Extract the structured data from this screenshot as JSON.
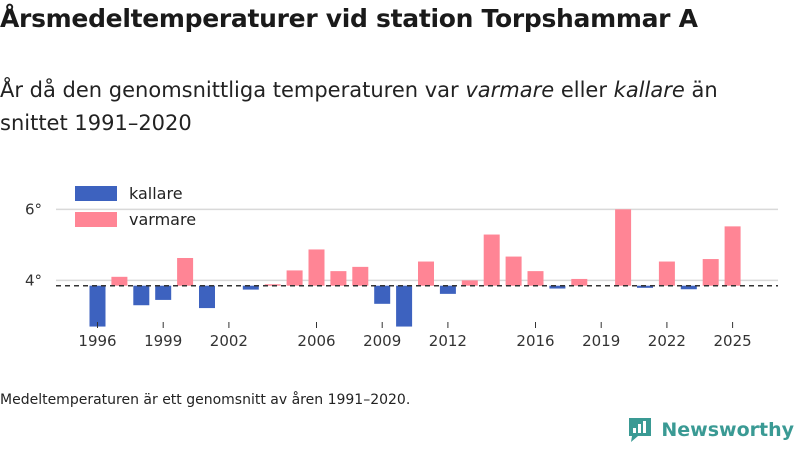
{
  "chart_data": {
    "type": "bar",
    "title": "Årsmedeltemperaturer vid station Torpshammar A",
    "subtitle_before_warm": "År då den genomsnittliga temperaturen var ",
    "subtitle_warm": "varmare",
    "subtitle_middle": " eller ",
    "subtitle_cold": "kallare",
    "subtitle_after": " än snittet 1991–2020",
    "baseline": 3.85,
    "ylim": [
      2.8,
      6.6
    ],
    "yticks": [
      {
        "value": 4,
        "label": "4°"
      },
      {
        "value": 6,
        "label": "6°"
      }
    ],
    "xticks": [
      {
        "year": 1996,
        "label": "1996"
      },
      {
        "year": 1999,
        "label": "1999"
      },
      {
        "year": 2002,
        "label": "2002"
      },
      {
        "year": 2006,
        "label": "2006"
      },
      {
        "year": 2009,
        "label": "2009"
      },
      {
        "year": 2012,
        "label": "2012"
      },
      {
        "year": 2016,
        "label": "2016"
      },
      {
        "year": 2019,
        "label": "2019"
      },
      {
        "year": 2022,
        "label": "2022"
      },
      {
        "year": 2025,
        "label": "2025"
      }
    ],
    "legend": [
      {
        "key": "cold",
        "label": "kallare",
        "color": "#3d62bf"
      },
      {
        "key": "warm",
        "label": "varmare",
        "color": "#ff8595"
      }
    ],
    "years": [
      1996,
      1997,
      1998,
      1999,
      2000,
      2001,
      2002,
      2003,
      2004,
      2005,
      2006,
      2007,
      2008,
      2009,
      2010,
      2011,
      2012,
      2013,
      2014,
      2015,
      2016,
      2017,
      2018,
      2019,
      2020,
      2021,
      2022,
      2023,
      2024,
      2025
    ],
    "values": [
      2.7,
      4.1,
      3.3,
      3.45,
      4.63,
      3.22,
      null,
      3.74,
      3.89,
      4.28,
      4.87,
      4.26,
      4.38,
      3.34,
      2.7,
      4.53,
      3.62,
      4.0,
      5.29,
      4.67,
      4.26,
      3.77,
      4.04,
      null,
      6.0,
      3.79,
      4.53,
      3.75,
      4.6,
      5.52
    ]
  },
  "note": "Medeltemperaturen är ett genomsnitt av åren 1991–2020.",
  "logo": {
    "text": "Newsworthy",
    "color": "#3a9a94"
  }
}
